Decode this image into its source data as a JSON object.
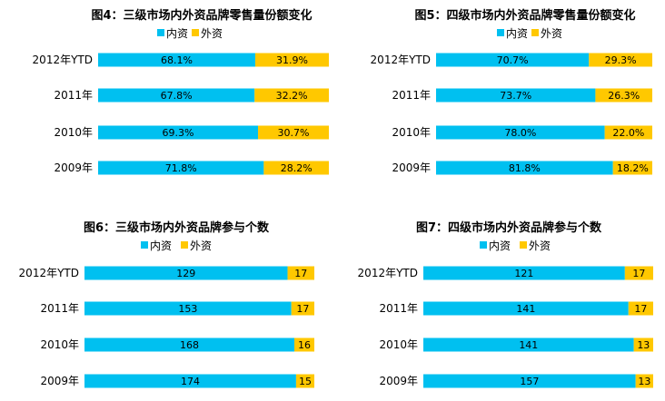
{
  "colors": {
    "domestic": "#00c0f0",
    "foreign": "#ffc800"
  },
  "chart_data": [
    {
      "type": "bar",
      "stacked": "percent",
      "orientation": "horizontal",
      "title": "图4：三级市场内外资品牌零售量份额变化",
      "categories": [
        "2012年YTD",
        "2011年",
        "2010年",
        "2009年"
      ],
      "series": [
        {
          "name": "内资",
          "values": [
            68.1,
            67.8,
            69.3,
            71.8
          ],
          "labels": [
            "68.1%",
            "67.8%",
            "69.3%",
            "71.8%"
          ]
        },
        {
          "name": "外资",
          "values": [
            31.9,
            32.2,
            30.7,
            28.2
          ],
          "labels": [
            "31.9%",
            "32.2%",
            "30.7%",
            "28.2%"
          ]
        }
      ],
      "legend": "top"
    },
    {
      "type": "bar",
      "stacked": "percent",
      "orientation": "horizontal",
      "title": "图5：四级市场内外资品牌零售量份额变化",
      "categories": [
        "2012年YTD",
        "2011年",
        "2010年",
        "2009年"
      ],
      "series": [
        {
          "name": "内资",
          "values": [
            70.7,
            73.7,
            78.0,
            81.8
          ],
          "labels": [
            "70.7%",
            "73.7%",
            "78.0%",
            "81.8%"
          ]
        },
        {
          "name": "外资",
          "values": [
            29.3,
            26.3,
            22.0,
            18.2
          ],
          "labels": [
            "29.3%",
            "26.3%",
            "22.0%",
            "18.2%"
          ]
        }
      ],
      "legend": "top"
    },
    {
      "type": "bar",
      "stacked": "percent",
      "orientation": "horizontal",
      "title": "图6：三级市场内外资品牌参与个数",
      "categories": [
        "2012年YTD",
        "2011年",
        "2010年",
        "2009年"
      ],
      "series": [
        {
          "name": "内资",
          "values": [
            129,
            153,
            168,
            174
          ],
          "labels": [
            "129",
            "153",
            "168",
            "174"
          ]
        },
        {
          "name": "外资",
          "values": [
            17,
            17,
            16,
            15
          ],
          "labels": [
            "17",
            "17",
            "16",
            "15"
          ]
        }
      ],
      "legend": "top"
    },
    {
      "type": "bar",
      "stacked": "percent",
      "orientation": "horizontal",
      "title": "图7：四级市场内外资品牌参与个数",
      "categories": [
        "2012年YTD",
        "2011年",
        "2010年",
        "2009年"
      ],
      "series": [
        {
          "name": "内资",
          "values": [
            121,
            141,
            141,
            157
          ],
          "labels": [
            "121",
            "141",
            "141",
            "157"
          ]
        },
        {
          "name": "外资",
          "values": [
            17,
            17,
            13,
            13
          ],
          "labels": [
            "17",
            "17",
            "13",
            "13"
          ]
        }
      ],
      "legend": "top"
    }
  ]
}
